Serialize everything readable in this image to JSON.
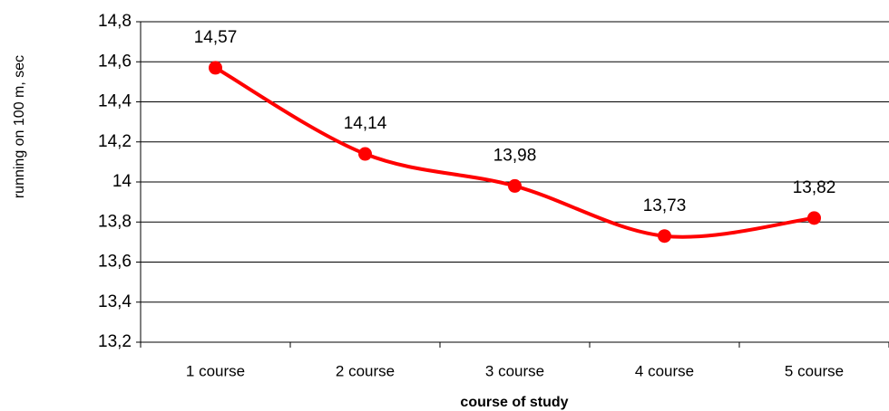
{
  "chart_data": {
    "type": "line",
    "xlabel": "course of study",
    "ylabel": "running on 100 m, sec",
    "categories": [
      "1 course",
      "2 course",
      "3 course",
      "4 course",
      "5 course"
    ],
    "series": [
      {
        "color": "#ff0000",
        "values": [
          14.57,
          14.14,
          13.98,
          13.73,
          13.82
        ],
        "value_labels": [
          "14,57",
          "14,14",
          "13,98",
          "13,73",
          "13,82"
        ]
      }
    ],
    "ylim": [
      13.2,
      14.8
    ],
    "yticks": [
      {
        "value": 13.2,
        "label": "13,2"
      },
      {
        "value": 13.4,
        "label": "13,4"
      },
      {
        "value": 13.6,
        "label": "13,6"
      },
      {
        "value": 13.8,
        "label": "13,8"
      },
      14,
      {
        "value": 14.2,
        "label": "14,2"
      },
      {
        "value": 14.4,
        "label": "14,4"
      },
      {
        "value": 14.6,
        "label": "14,6"
      },
      {
        "value": 14.8,
        "label": "14,8"
      }
    ],
    "grid": true,
    "smooth": true
  }
}
